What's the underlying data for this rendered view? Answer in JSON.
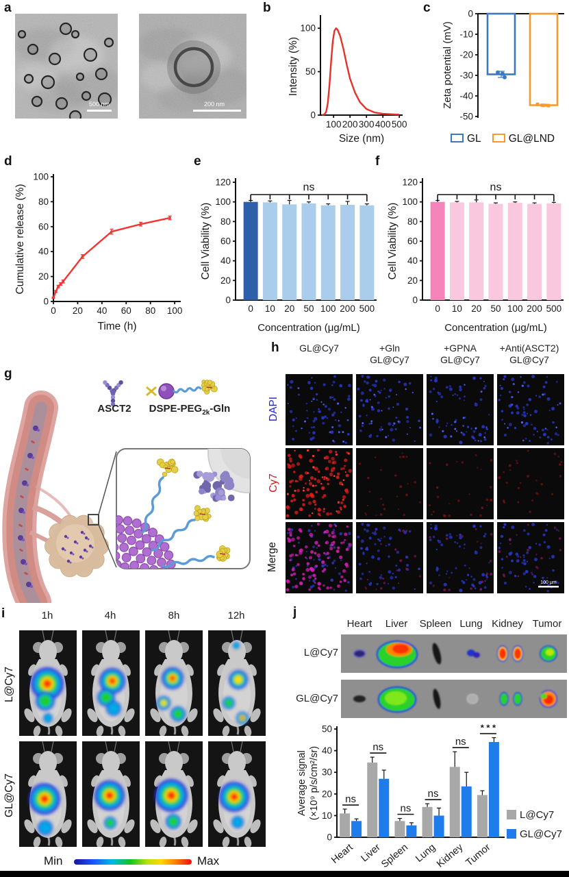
{
  "figure": {
    "panel_a": {
      "label": "a",
      "images": [
        {
          "name": "tem-overview",
          "scalebar": "500 nm"
        },
        {
          "name": "tem-single-vesicle",
          "scalebar": "200 nm"
        }
      ]
    },
    "panel_b": {
      "label": "b"
    },
    "panel_c": {
      "label": "c"
    },
    "panel_d": {
      "label": "d"
    },
    "panel_e": {
      "label": "e"
    },
    "panel_f": {
      "label": "f"
    },
    "panel_g": {
      "label": "g",
      "ascr2_label": "ASCT2",
      "dspe_label": {
        "pre": "DSPE-PEG",
        "sub": "2k",
        "post": "-Gln"
      }
    },
    "panel_h": {
      "label": "h",
      "columns": [
        {
          "line1": "",
          "line2": "GL@Cy7"
        },
        {
          "line1": "+Gln",
          "line2": "GL@Cy7"
        },
        {
          "line1": "+GPNA",
          "line2": "GL@Cy7"
        },
        {
          "line1": "+Anti(ASCT2)",
          "line2": "GL@Cy7"
        }
      ],
      "rows": [
        {
          "label": "DAPI",
          "color": "#2525d8"
        },
        {
          "label": "Cy7",
          "color": "#d01818"
        },
        {
          "label": "Merge",
          "color": "#111111"
        }
      ],
      "scalebar": "100 μm"
    },
    "panel_i": {
      "label": "i",
      "timepoints": [
        "1h",
        "4h",
        "8h",
        "12h"
      ],
      "rows": [
        "L@Cy7",
        "GL@Cy7"
      ],
      "colorbar": {
        "min": "Min",
        "max": "Max"
      }
    },
    "panel_j": {
      "label": "j",
      "organ_headers": [
        "Heart",
        "Liver",
        "Spleen",
        "Lung",
        "Kidney",
        "Tumor"
      ],
      "organ_rows": [
        "L@Cy7",
        "GL@Cy7"
      ]
    }
  },
  "chart_data": [
    {
      "id": "b",
      "type": "line",
      "title": "",
      "xlabel": "Size (nm)",
      "ylabel": "Intensity (%)",
      "xlim": [
        20,
        520
      ],
      "ylim": [
        0,
        112
      ],
      "xticks": [
        100,
        200,
        300,
        400,
        500
      ],
      "yticks": [
        0,
        50,
        100
      ],
      "color": "#E8302A",
      "x": [
        30,
        45,
        55,
        65,
        75,
        85,
        95,
        105,
        115,
        125,
        140,
        160,
        180,
        200,
        230,
        260,
        300,
        350,
        400,
        450,
        500
      ],
      "y": [
        0,
        1,
        4,
        14,
        35,
        62,
        85,
        97,
        100,
        98,
        91,
        76,
        58,
        42,
        26,
        15,
        7,
        3,
        1.5,
        1,
        0.5
      ]
    },
    {
      "id": "c",
      "type": "bar-negative",
      "ylabel": "Zeta potential (mV)",
      "ylim": [
        0,
        -50
      ],
      "yticks": [
        0,
        -10,
        -20,
        -30,
        -40,
        -50
      ],
      "series": [
        {
          "name": "GL",
          "value": -29.5,
          "err": 1.5,
          "color": "#3C78C0",
          "points": [
            -28.6,
            -29.2,
            -30.9
          ]
        },
        {
          "name": "GL@LND",
          "value": -44.5,
          "err": 0.5,
          "color": "#F59B2E",
          "points": [
            -44.1,
            -44.6,
            -44.7
          ]
        }
      ]
    },
    {
      "id": "d",
      "type": "line",
      "xlabel": "Time (h)",
      "ylabel": "Cumulative release (%)",
      "xlim": [
        0,
        105
      ],
      "ylim": [
        0,
        100
      ],
      "xticks": [
        0,
        20,
        40,
        60,
        80,
        100
      ],
      "yticks": [
        0,
        20,
        40,
        60,
        80,
        100
      ],
      "color": "#F23434",
      "x": [
        0,
        2,
        4,
        6,
        8,
        24,
        48,
        72,
        96
      ],
      "y": [
        3,
        8,
        12,
        14,
        16,
        36,
        56,
        62,
        67
      ],
      "yerr": [
        0.5,
        0.8,
        1.0,
        1.0,
        1.2,
        1.5,
        2.0,
        1.5,
        1.5
      ]
    },
    {
      "id": "e",
      "type": "bar",
      "xlabel": "Concentration (μg/mL)",
      "ylabel": "Cell Viability (%)",
      "ylim": [
        0,
        120
      ],
      "yticks": [
        0,
        20,
        40,
        60,
        80,
        100,
        120
      ],
      "categories": [
        "0",
        "10",
        "20",
        "50",
        "100",
        "200",
        "500"
      ],
      "values": [
        100,
        99.5,
        97.5,
        98.5,
        96.5,
        97,
        96.5
      ],
      "errors": [
        1.5,
        1.5,
        4,
        1.5,
        1.5,
        3.5,
        1.5
      ],
      "bar_colors": [
        "#2E5FA8",
        "#A9CDEA",
        "#A9CDEA",
        "#A9CDEA",
        "#A9CDEA",
        "#A9CDEA",
        "#A9CDEA"
      ],
      "annotation": "ns"
    },
    {
      "id": "f",
      "type": "bar",
      "xlabel": "Concentration (μg/mL)",
      "ylabel": "Cell Viability (%)",
      "ylim": [
        0,
        120
      ],
      "yticks": [
        0,
        20,
        40,
        60,
        80,
        100,
        120
      ],
      "categories": [
        "0",
        "10",
        "20",
        "50",
        "100",
        "200",
        "500"
      ],
      "values": [
        100,
        99.5,
        99.5,
        98,
        99,
        98,
        98.5
      ],
      "errors": [
        1.5,
        1,
        2.5,
        1,
        1,
        1,
        1
      ],
      "bar_colors": [
        "#F584BA",
        "#FAC8DE",
        "#FAC8DE",
        "#FAC8DE",
        "#FAC8DE",
        "#FAC8DE",
        "#FAC8DE"
      ],
      "annotation": "ns"
    },
    {
      "id": "j",
      "type": "grouped-bar",
      "ylabel_line1": "Average signal",
      "ylabel_line2": "(×10⁹ p/s/cm²/sr)",
      "ylim": [
        0,
        50
      ],
      "yticks": [
        0,
        10,
        20,
        30,
        40,
        50
      ],
      "categories": [
        "Heart",
        "Liver",
        "Spleen",
        "Lung",
        "Kidney",
        "Tumor"
      ],
      "series": [
        {
          "name": "L@Cy7",
          "color": "#A8A8A8",
          "values": [
            11,
            34.5,
            7.5,
            14,
            32.5,
            19.5
          ],
          "errors": [
            2,
            2.5,
            1.2,
            1.5,
            7,
            2
          ]
        },
        {
          "name": "GL@Cy7",
          "color": "#1F7DEB",
          "values": [
            7.5,
            27,
            5.5,
            10,
            23.5,
            44
          ],
          "errors": [
            1,
            4,
            1.2,
            3.5,
            6.5,
            2
          ]
        }
      ],
      "significance": [
        "ns",
        "ns",
        "ns",
        "ns",
        "ns",
        "***"
      ]
    }
  ]
}
